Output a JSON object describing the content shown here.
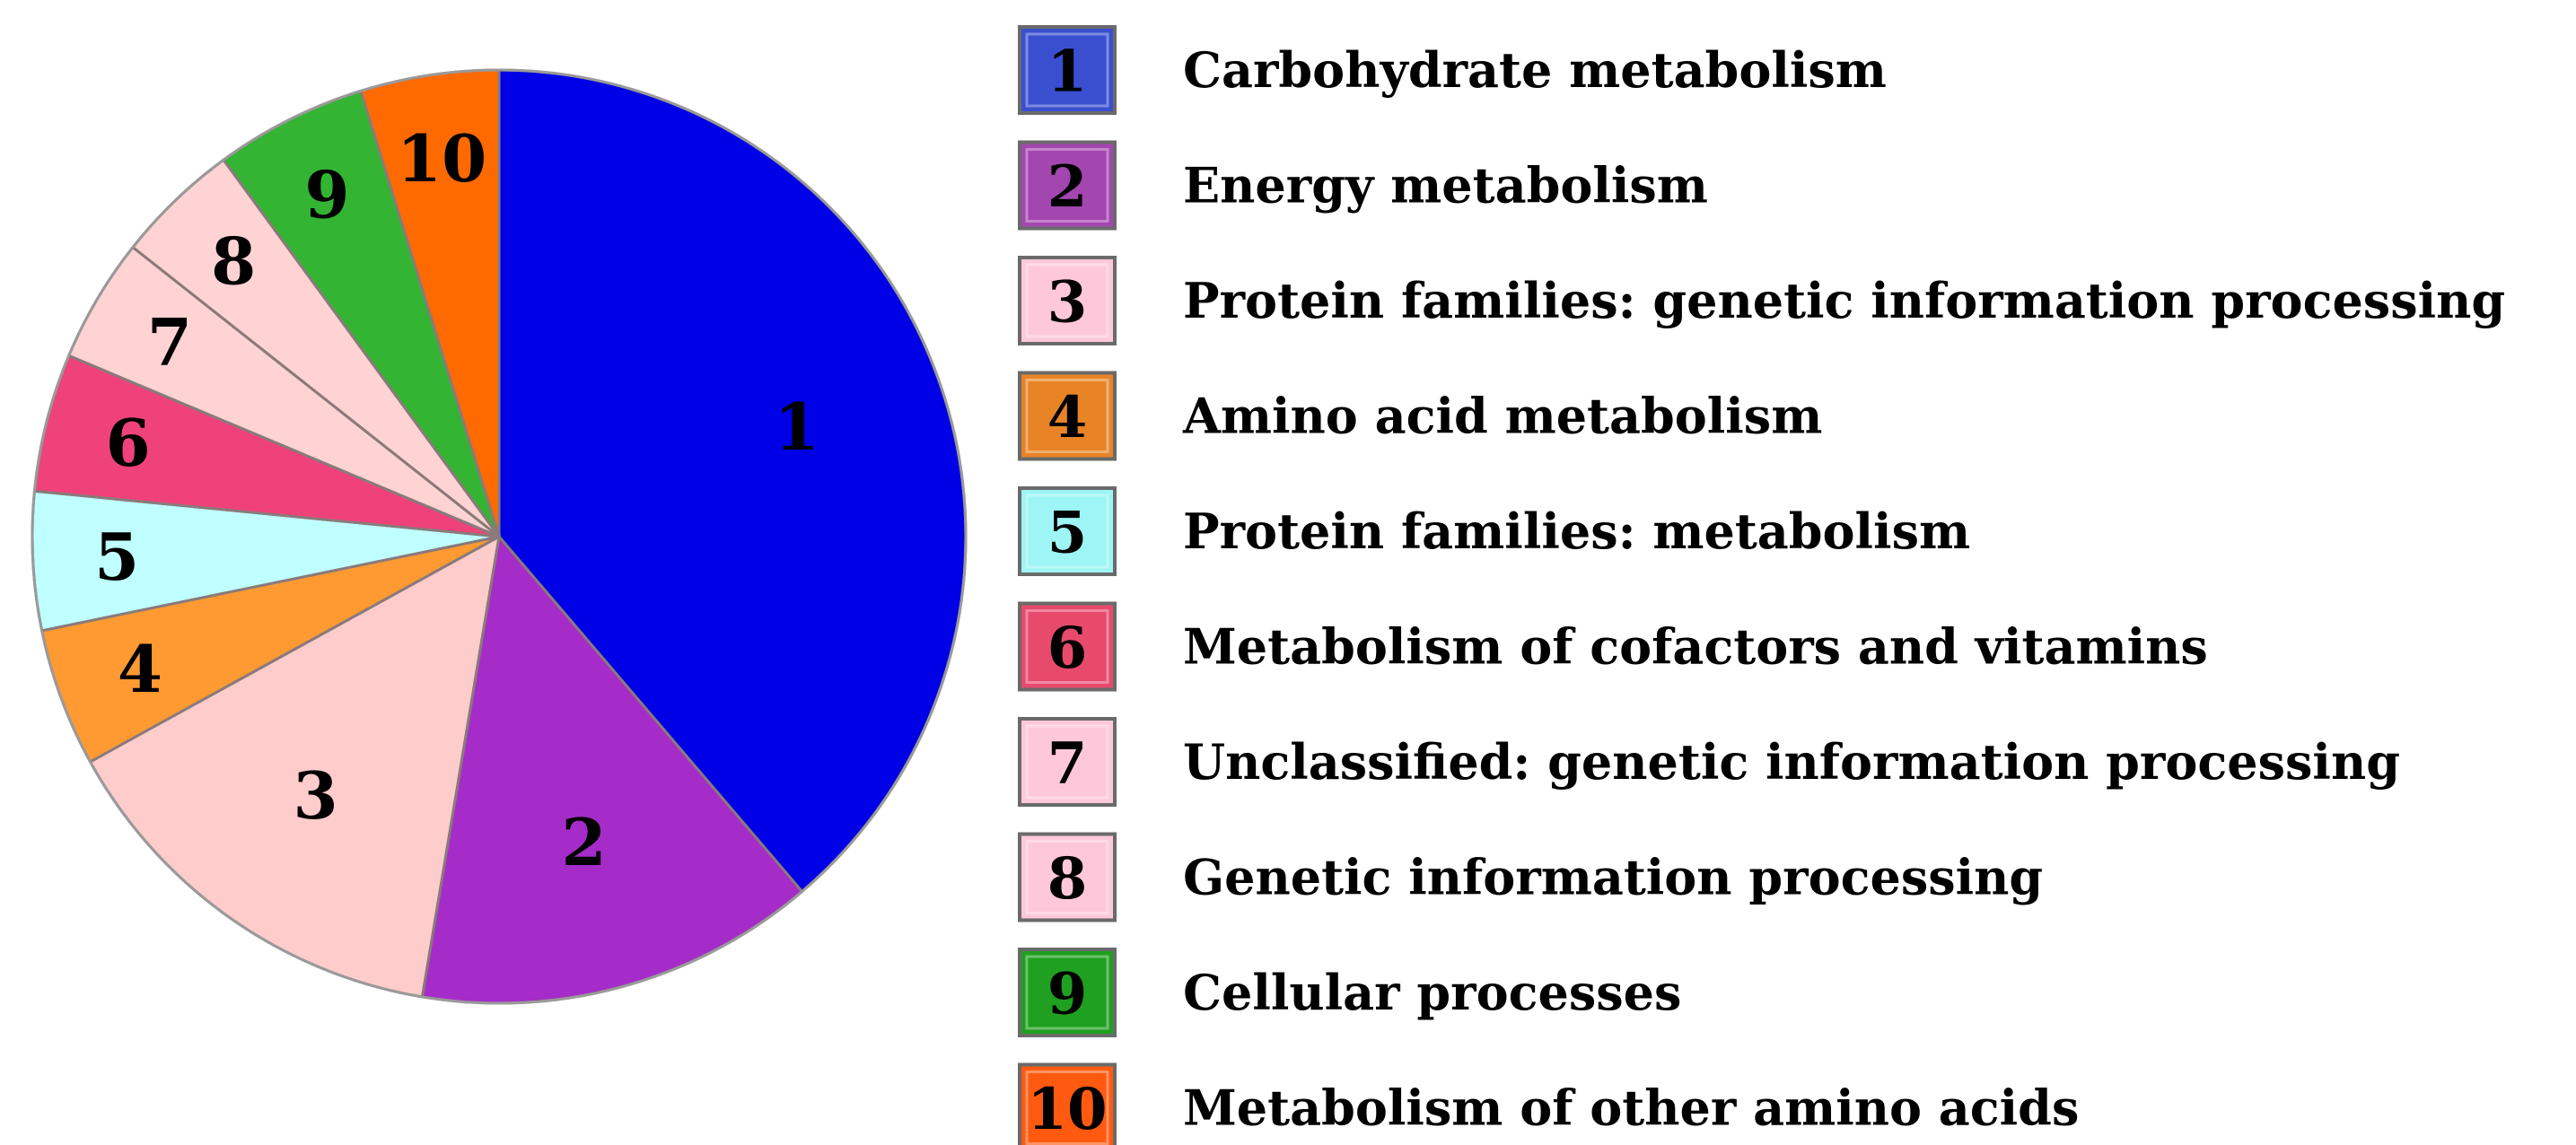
{
  "chart_data": {
    "type": "pie",
    "title": "",
    "categories": [
      "1",
      "2",
      "3",
      "4",
      "5",
      "6",
      "7",
      "8",
      "9",
      "10"
    ],
    "values": [
      40.5,
      14.5,
      15.0,
      5.0,
      5.0,
      5.0,
      4.5,
      4.5,
      5.5,
      5.0
    ],
    "colors": [
      "#0000E6",
      "#A52CC8",
      "#FFCCCC",
      "#FF9A33",
      "#BFFFFF",
      "#F0427A",
      "#FFD3D3",
      "#FFD3D3",
      "#33B433",
      "#FF6A00"
    ],
    "legend_colors": [
      "#3A4FD0",
      "#A346B0",
      "#FFC8DA",
      "#E88426",
      "#9DF5F5",
      "#E84A6C",
      "#FFC8DA",
      "#FFC8DA",
      "#20A020",
      "#FF5A10"
    ],
    "legend": [
      {
        "number": "1",
        "label": "Carbohydrate metabolism"
      },
      {
        "number": "2",
        "label": "Energy metabolism"
      },
      {
        "number": "3",
        "label": "Protein families: genetic information processing"
      },
      {
        "number": "4",
        "label": "Amino acid metabolism"
      },
      {
        "number": "5",
        "label": "Protein families: metabolism"
      },
      {
        "number": "6",
        "label": "Metabolism of cofactors and vitamins"
      },
      {
        "number": "7",
        "label": "Unclassified: genetic information processing"
      },
      {
        "number": "8",
        "label": "Genetic information processing"
      },
      {
        "number": "9",
        "label": "Cellular processes"
      },
      {
        "number": "10",
        "label": "Metabolism of other amino acids"
      }
    ],
    "legend_placement": "right",
    "start_angle_deg": 0,
    "direction": "clockwise"
  }
}
